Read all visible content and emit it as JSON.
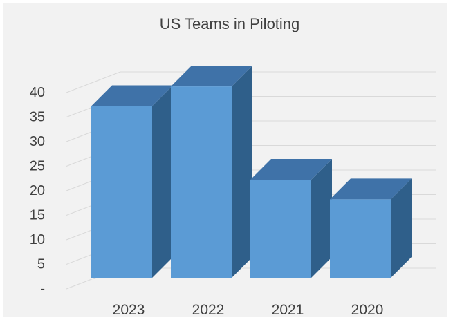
{
  "chart_data": {
    "type": "bar",
    "title": "US Teams in Piloting",
    "categories": [
      "2023",
      "2022",
      "2021",
      "2020"
    ],
    "values": [
      35,
      39,
      20,
      16
    ],
    "ylim": [
      0,
      40
    ],
    "yticks": [
      "-",
      "5",
      "10",
      "15",
      "20",
      "25",
      "30",
      "35",
      "40"
    ],
    "grid": true,
    "colors": {
      "bar_front": "#5b9bd5",
      "bar_side": "#2f5f8a",
      "bar_top": "#3f72a8",
      "grid": "#d9d9d9"
    }
  }
}
